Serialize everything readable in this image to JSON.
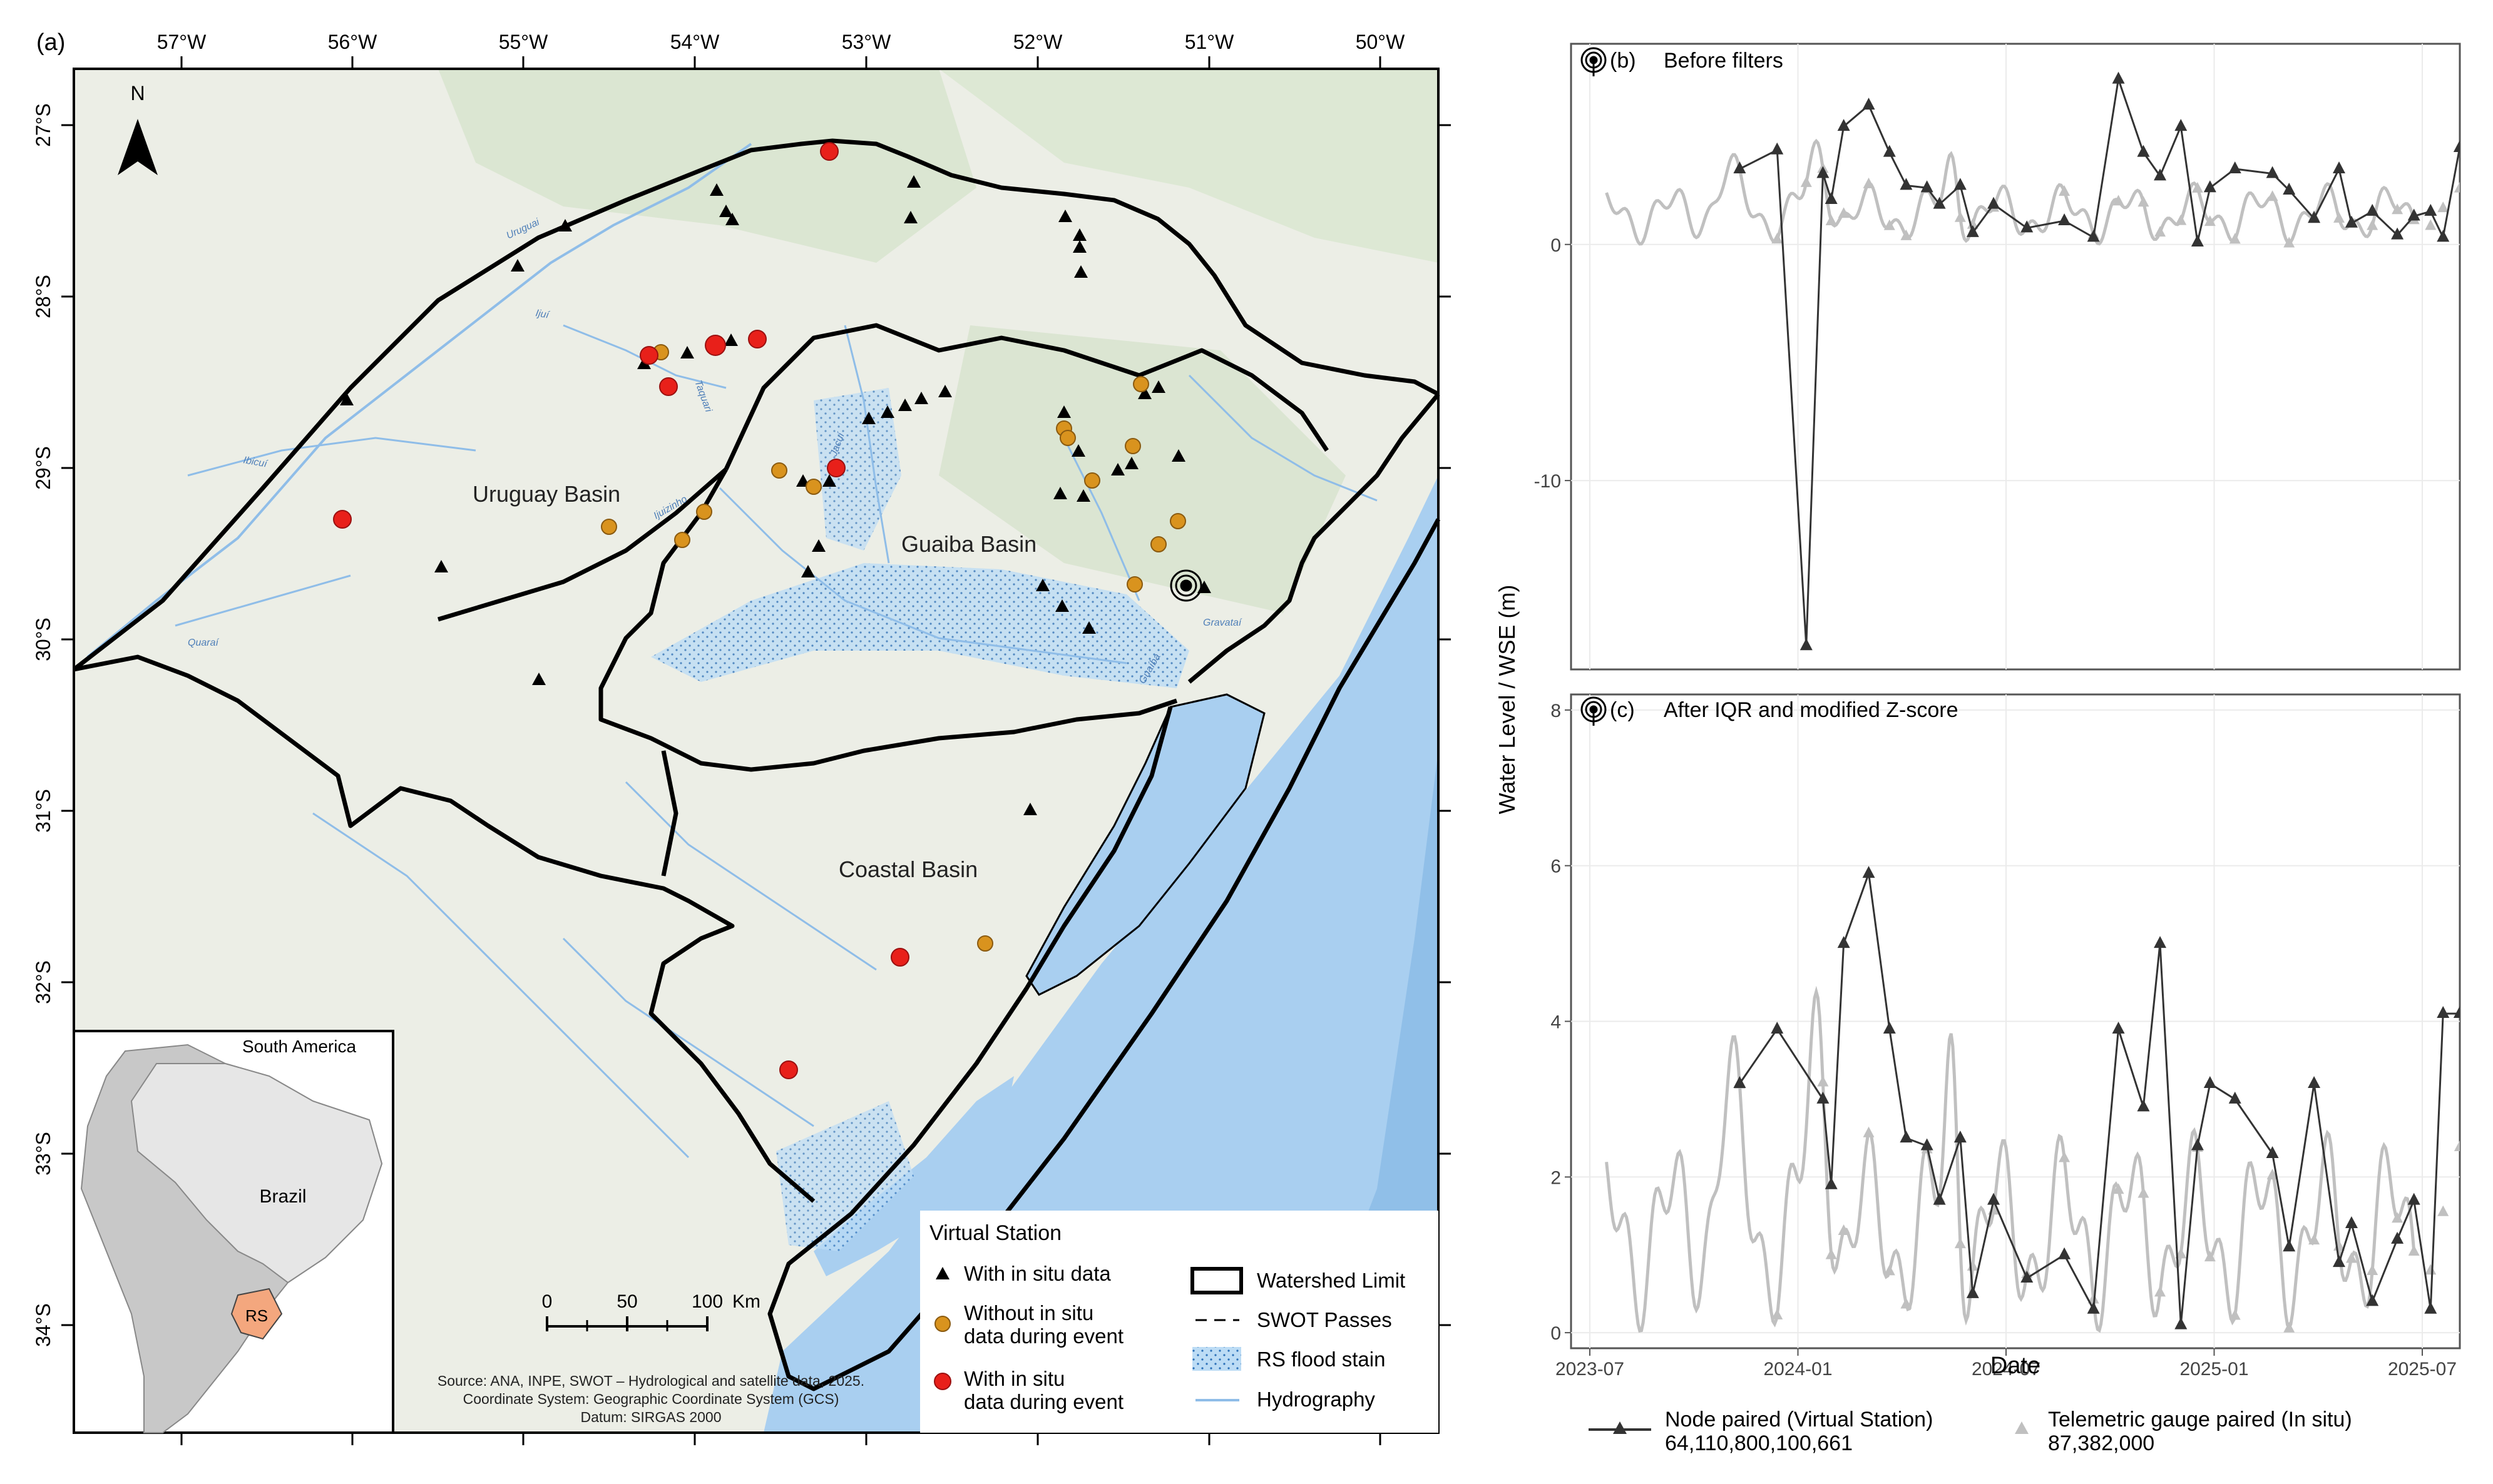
{
  "map": {
    "panel_label": "(a)",
    "north_label": "N",
    "lon_ticks": [
      "57°W",
      "56°W",
      "55°W",
      "54°W",
      "53°W",
      "52°W",
      "51°W",
      "50°W"
    ],
    "lat_ticks": [
      "27°S",
      "28°S",
      "29°S",
      "30°S",
      "31°S",
      "32°S",
      "33°S",
      "34°S"
    ],
    "basins": [
      "Uruguay Basin",
      "Guaiba Basin",
      "Coastal Basin"
    ],
    "river_names": [
      "Uruguai",
      "Ijuí",
      "Ibicuí",
      "Quaraí",
      "Jacuí",
      "Taquari",
      "Gravataí",
      "Guaíba",
      "Ijuizinho"
    ],
    "inset": {
      "title": "South America",
      "country": "Brazil",
      "state": "RS"
    },
    "scalebar": {
      "ticks": [
        "0",
        "50",
        "100"
      ],
      "unit": "Km"
    },
    "source": [
      "Source: ANA, INPE, SWOT – Hydrological and satellite data, 2025.",
      "Coordinate System: Geographic Coordinate System (GCS)",
      "Datum: SIRGAS 2000"
    ],
    "legend": {
      "title": "Virtual Station",
      "items": {
        "with_in_situ": "With in situ data",
        "without_line1": "Without in situ",
        "without_line2": "data during event",
        "with_during_line1": "With in situ",
        "with_during_line2": "data during event",
        "watershed": "Watershed Limit",
        "swot": "SWOT Passes",
        "flood": "RS flood stain",
        "hydro": "Hydrography"
      }
    },
    "colors": {
      "with_in_situ": "#000000",
      "without_in_situ": "#d9931e",
      "during_event": "#e8201a",
      "water": "#a9cff0",
      "land": "#eceee6"
    }
  },
  "chart_data": [
    {
      "type": "line",
      "panel": "(b)",
      "title": "Before filters",
      "xlabel": "Date",
      "ylabel": "Water Level / WSE (m)",
      "x_ticks": [
        "2023-07",
        "2024-01",
        "2024-07",
        "2025-01",
        "2025-07"
      ],
      "y_ticks": [
        "-10",
        "0"
      ],
      "ylim": [
        -18,
        8.5
      ],
      "series": [
        {
          "name": "Node paired (Virtual Station)",
          "id": "64,110,800,100,661",
          "color": "#333333",
          "x": [
            2023.86,
            2023.95,
            2024.02,
            2024.06,
            2024.08,
            2024.11,
            2024.17,
            2024.22,
            2024.26,
            2024.31,
            2024.34,
            2024.39,
            2024.42,
            2024.47,
            2024.55,
            2024.64,
            2024.71,
            2024.77,
            2024.83,
            2024.87,
            2024.92,
            2024.96,
            2024.99,
            2025.05,
            2025.14,
            2025.18,
            2025.24,
            2025.3,
            2025.33,
            2025.38,
            2025.44,
            2025.48,
            2025.52,
            2025.55,
            2025.59
          ],
          "values": [
            3.2,
            4.0,
            -17.0,
            3.0,
            1.9,
            5.0,
            5.9,
            3.9,
            2.5,
            2.4,
            1.7,
            2.5,
            0.5,
            1.7,
            0.7,
            1.0,
            0.3,
            7.0,
            3.9,
            2.9,
            5.0,
            0.1,
            2.4,
            3.2,
            3.0,
            2.3,
            1.1,
            3.2,
            0.9,
            1.4,
            0.4,
            1.2,
            1.4,
            0.3,
            4.1
          ]
        },
        {
          "name": "Telemetric gauge paired (In situ)",
          "id": "87,382,000",
          "color": "#c0c0c0",
          "note": "continuous gauge record 2023-07 to 2025-07"
        }
      ]
    },
    {
      "type": "line",
      "panel": "(c)",
      "title": "After IQR and modified Z-score",
      "xlabel": "Date",
      "ylabel": "Water Level / WSE (m)",
      "x_ticks": [
        "2023-07",
        "2024-01",
        "2024-07",
        "2025-01",
        "2025-07"
      ],
      "y_ticks": [
        "0",
        "2",
        "4",
        "6",
        "8"
      ],
      "ylim": [
        -0.2,
        8.2
      ],
      "series": [
        {
          "name": "Node paired (Virtual Station)",
          "id": "64,110,800,100,661",
          "color": "#333333",
          "x": [
            2023.86,
            2023.95,
            2024.06,
            2024.08,
            2024.11,
            2024.17,
            2024.22,
            2024.26,
            2024.31,
            2024.34,
            2024.39,
            2024.42,
            2024.47,
            2024.55,
            2024.64,
            2024.71,
            2024.77,
            2024.83,
            2024.87,
            2024.92,
            2024.96,
            2024.99,
            2025.05,
            2025.14,
            2025.18,
            2025.24,
            2025.3,
            2025.33,
            2025.38,
            2025.44,
            2025.48,
            2025.52,
            2025.55,
            2025.59
          ],
          "values": [
            3.2,
            3.9,
            3.0,
            1.9,
            5.0,
            5.9,
            3.9,
            2.5,
            2.4,
            1.7,
            2.5,
            0.5,
            1.7,
            0.7,
            1.0,
            0.3,
            3.9,
            2.9,
            5.0,
            0.1,
            2.4,
            3.2,
            3.0,
            2.3,
            1.1,
            3.2,
            0.9,
            1.4,
            0.4,
            1.2,
            1.7,
            0.3,
            4.1,
            4.1
          ]
        },
        {
          "name": "Telemetric gauge paired (In situ)",
          "id": "87,382,000",
          "color": "#c0c0c0",
          "note": "continuous gauge record 2023-07 to 2025-07"
        }
      ]
    }
  ],
  "legend_bottom": {
    "node_label": "Node paired (Virtual Station)",
    "node_id": "64,110,800,100,661",
    "gauge_label": "Telemetric gauge paired (In situ)",
    "gauge_id": "87,382,000"
  }
}
